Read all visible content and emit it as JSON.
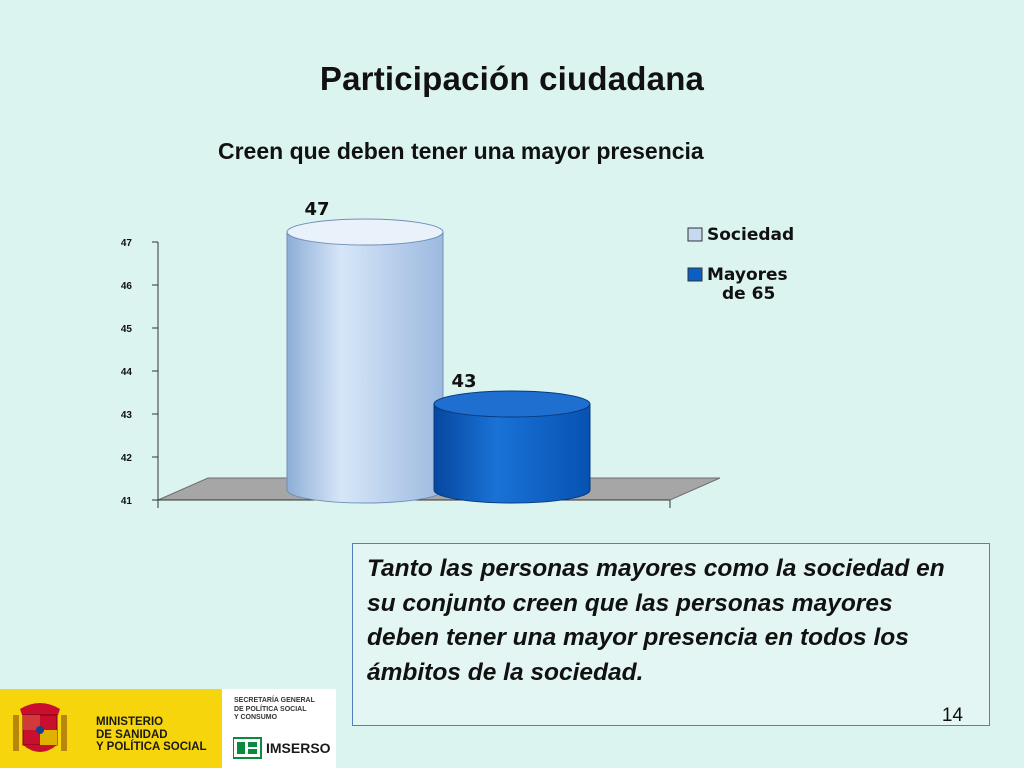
{
  "slide": {
    "title": "Participación ciudadana",
    "page_number": "14"
  },
  "chart_data": {
    "type": "bar",
    "title": "Creen que deben tener una mayor presencia",
    "categories": [
      "Sociedad",
      "Mayores de 65"
    ],
    "values": [
      47,
      43
    ],
    "data_labels": [
      "47",
      "43"
    ],
    "legend": [
      "Sociedad",
      "Mayores de 65"
    ],
    "legend_lines": [
      [
        "Sociedad"
      ],
      [
        "Mayores",
        "de 65"
      ]
    ],
    "legend_position": "top-right",
    "ylim": [
      41,
      47
    ],
    "yticks": [
      "41",
      "42",
      "43",
      "44",
      "45",
      "46",
      "47"
    ],
    "colors": [
      "#c5d9f1",
      "#0a5fc4"
    ],
    "three_d": true
  },
  "note": {
    "text": "Tanto las personas mayores como la sociedad en su conjunto creen que las personas mayores deben tener una mayor presencia en todos los ámbitos de la sociedad."
  },
  "footer": {
    "ministry": "MINISTERIO\nDE SANIDAD\nY POLÍTICA SOCIAL",
    "secretaria": "SECRETARÍA GENERAL\nDE POLÍTICA SOCIAL\nY CONSUMO",
    "imserso": "IMSERSO",
    "ministry_color": "#f6d50c"
  }
}
